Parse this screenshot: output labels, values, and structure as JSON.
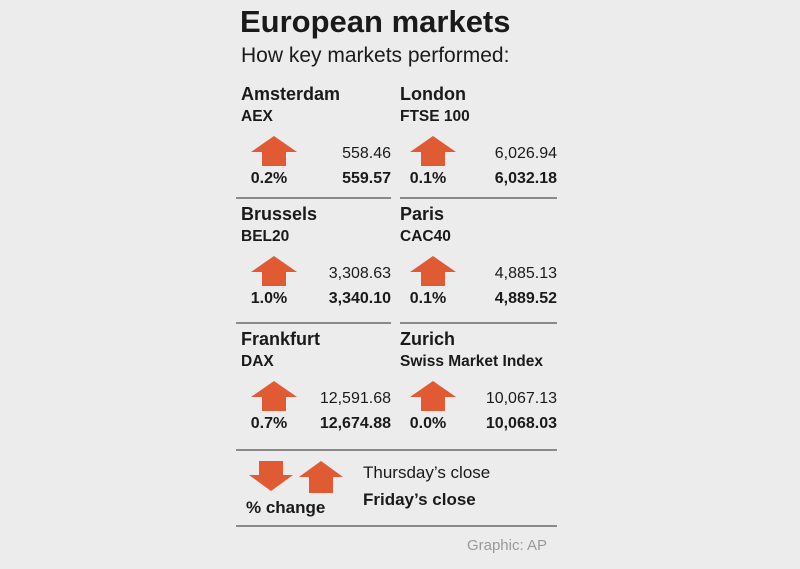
{
  "header": {
    "title": "European markets",
    "subtitle": "How key markets performed:"
  },
  "colors": {
    "arrow": "#e05a34",
    "rule": "#8a8a8a",
    "credit": "#9a9a9a"
  },
  "chart_data": {
    "type": "table",
    "title": "European markets",
    "subtitle": "How key markets performed:",
    "markets": [
      {
        "city": "Amsterdam",
        "index": "AEX",
        "direction": "up",
        "pct_change": "0.2%",
        "thursday_close": "558.46",
        "friday_close": "559.57"
      },
      {
        "city": "London",
        "index": "FTSE 100",
        "direction": "up",
        "pct_change": "0.1%",
        "thursday_close": "6,026.94",
        "friday_close": "6,032.18"
      },
      {
        "city": "Brussels",
        "index": "BEL20",
        "direction": "up",
        "pct_change": "1.0%",
        "thursday_close": "3,308.63",
        "friday_close": "3,340.10"
      },
      {
        "city": "Paris",
        "index": "CAC40",
        "direction": "up",
        "pct_change": "0.1%",
        "thursday_close": "4,885.13",
        "friday_close": "4,889.52"
      },
      {
        "city": "Frankfurt",
        "index": "DAX",
        "direction": "up",
        "pct_change": "0.7%",
        "thursday_close": "12,591.68",
        "friday_close": "12,674.88"
      },
      {
        "city": "Zurich",
        "index": "Swiss Market Index",
        "direction": "up",
        "pct_change": "0.0%",
        "thursday_close": "10,067.13",
        "friday_close": "10,068.03"
      }
    ],
    "legend": {
      "pct_label": "% change",
      "thursday_label": "Thursday’s close",
      "friday_label": "Friday’s close"
    }
  },
  "footer": {
    "credit": "Graphic: AP"
  }
}
